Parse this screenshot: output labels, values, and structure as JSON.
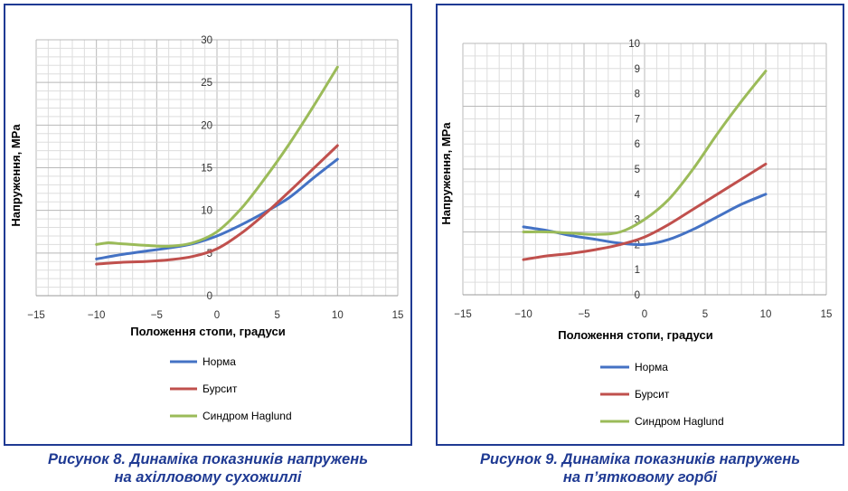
{
  "chart_data": [
    {
      "type": "line",
      "xlabel": "Положення стопи, градуси",
      "ylabel": "Напруження, MPa",
      "xlim": [
        -15,
        15
      ],
      "ylim": [
        0,
        30
      ],
      "x_ticks": [
        "−15",
        "−10",
        "−5",
        "0",
        "5",
        "10",
        "15"
      ],
      "y_ticks": [
        "0",
        "5",
        "10",
        "15",
        "20",
        "25",
        "30"
      ],
      "grid": true,
      "legend_position": "bottom-center",
      "series": [
        {
          "name": "Норма",
          "color": "#4472c4",
          "x": [
            -10,
            -8,
            -6,
            -4,
            -2,
            0,
            2,
            4,
            6,
            8,
            10
          ],
          "y": [
            4.3,
            4.8,
            5.2,
            5.6,
            6.1,
            7.0,
            8.3,
            9.8,
            11.5,
            13.8,
            16.0
          ]
        },
        {
          "name": "Бурсит",
          "color": "#c0504d",
          "x": [
            -10,
            -8,
            -6,
            -4,
            -2,
            0,
            2,
            4,
            6,
            8,
            10
          ],
          "y": [
            3.7,
            3.9,
            4.0,
            4.2,
            4.6,
            5.5,
            7.3,
            9.6,
            12.2,
            14.9,
            17.6
          ]
        },
        {
          "name": "Синдром Haglund",
          "color": "#9bbb59",
          "x": [
            -10,
            -9,
            -8,
            -6,
            -4,
            -2,
            0,
            2,
            4,
            6,
            8,
            10
          ],
          "y": [
            6.0,
            6.2,
            6.1,
            5.9,
            5.8,
            6.2,
            7.5,
            10.2,
            13.8,
            17.8,
            22.2,
            26.8
          ]
        }
      ]
    },
    {
      "type": "line",
      "xlabel": "Положення стопи, градуси",
      "ylabel": "Напруження, MPa",
      "xlim": [
        -15,
        15
      ],
      "ylim": [
        0,
        10
      ],
      "x_ticks": [
        "−15",
        "−10",
        "−5",
        "0",
        "5",
        "10",
        "15"
      ],
      "y_ticks": [
        "0",
        "1",
        "2",
        "3",
        "4",
        "5",
        "6",
        "7",
        "8",
        "9",
        "10"
      ],
      "grid": true,
      "legend_position": "bottom-center",
      "series": [
        {
          "name": "Норма",
          "color": "#4472c4",
          "x": [
            -10,
            -8,
            -6,
            -4,
            -2,
            0,
            2,
            4,
            6,
            8,
            10
          ],
          "y": [
            2.7,
            2.55,
            2.35,
            2.2,
            2.05,
            2.0,
            2.2,
            2.6,
            3.1,
            3.6,
            4.0
          ]
        },
        {
          "name": "Бурсит",
          "color": "#c0504d",
          "x": [
            -10,
            -8,
            -6,
            -4,
            -2,
            0,
            2,
            4,
            6,
            8,
            10
          ],
          "y": [
            1.4,
            1.55,
            1.65,
            1.8,
            2.0,
            2.3,
            2.8,
            3.4,
            4.0,
            4.6,
            5.2
          ]
        },
        {
          "name": "Синдром Haglund",
          "color": "#9bbb59",
          "x": [
            -10,
            -8,
            -6,
            -4,
            -2,
            0,
            2,
            4,
            6,
            8,
            10
          ],
          "y": [
            2.5,
            2.5,
            2.45,
            2.4,
            2.5,
            3.0,
            3.8,
            5.0,
            6.4,
            7.7,
            8.9
          ]
        }
      ]
    }
  ],
  "captions": [
    {
      "line1": "Рисунок 8. Динаміка показників напружень",
      "line2": "на ахілловому сухожиллі"
    },
    {
      "line1": "Рисунок 9. Динаміка показників напружень",
      "line2": "на п’ятковому горбі"
    }
  ]
}
